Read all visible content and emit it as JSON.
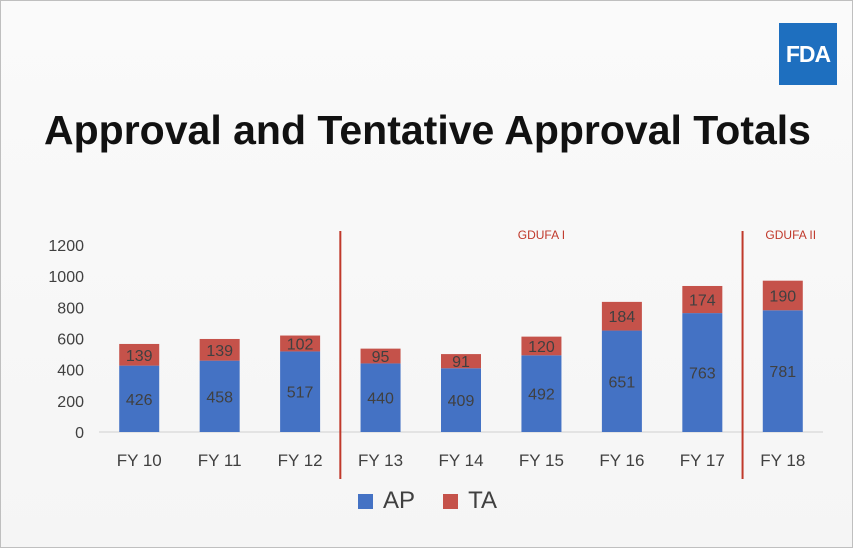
{
  "slide": {
    "title": "Approval and Tentative Approval Totals",
    "logo_text": "FDA",
    "colors": {
      "logo_bg": "#1e6fbf",
      "ap": "#4472c4",
      "ta": "#c5524a",
      "marker": "#c0392b"
    }
  },
  "chart_data": {
    "type": "bar",
    "stacked": true,
    "categories": [
      "FY 10",
      "FY 11",
      "FY 12",
      "FY 13",
      "FY 14",
      "FY 15",
      "FY 16",
      "FY 17",
      "FY 18"
    ],
    "series": [
      {
        "name": "AP",
        "color": "#4472c4",
        "values": [
          426,
          458,
          517,
          440,
          409,
          492,
          651,
          763,
          781
        ]
      },
      {
        "name": "TA",
        "color": "#c5524a",
        "values": [
          139,
          139,
          102,
          95,
          91,
          120,
          184,
          174,
          190
        ]
      }
    ],
    "y_ticks": [
      0,
      200,
      400,
      600,
      800,
      1000,
      1200
    ],
    "ylim": [
      0,
      1200
    ],
    "grid": false,
    "legend_position": "bottom",
    "annotations": [
      {
        "text": "GDUFA I"
      },
      {
        "text": "GDUFA II"
      }
    ]
  }
}
